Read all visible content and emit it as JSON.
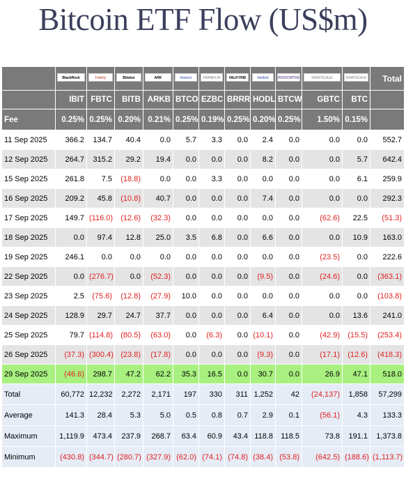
{
  "title": "Bitcoin ETF Flow (US$m)",
  "header": {
    "total_label": "Total",
    "fee_label": "Fee",
    "logos": [
      {
        "icon": "blackrock-logo",
        "text": "BlackRock",
        "style": "dark"
      },
      {
        "icon": "fidelity-logo",
        "text": "Fidelity",
        "style": "red"
      },
      {
        "icon": "bitwise-logo",
        "text": "Bitwise",
        "style": "dark"
      },
      {
        "icon": "ark-logo",
        "text": "ARK",
        "style": "dark"
      },
      {
        "icon": "invesco-logo",
        "text": "Invesco",
        "style": "blue"
      },
      {
        "icon": "franklin-logo",
        "text": "FRANKLIN",
        "style": "gray"
      },
      {
        "icon": "valkyrie-logo",
        "text": "VALKYRIE",
        "style": "dark"
      },
      {
        "icon": "vaneck-logo",
        "text": "VanEck",
        "style": "blue"
      },
      {
        "icon": "wisdomtree-logo",
        "text": "WISDOMTREE",
        "style": "purple"
      },
      {
        "icon": "grayscale-logo",
        "text": "GRAYSCALE",
        "style": "gray"
      },
      {
        "icon": "grayscale-logo-2",
        "text": "GRAYSCALE",
        "style": "gray"
      }
    ],
    "tickers": [
      "IBIT",
      "FBTC",
      "BITB",
      "ARKB",
      "BTCO",
      "EZBC",
      "BRRR",
      "HODL",
      "BTCW",
      "GBTC",
      "BTC"
    ],
    "fees": [
      "0.25%",
      "0.25%",
      "0.20%",
      "0.21%",
      "0.25%",
      "0.19%",
      "0.25%",
      "0.20%",
      "0.25%",
      "1.50%",
      "0.15%"
    ]
  },
  "rows": [
    {
      "date": "11 Sep 2025",
      "values": [
        "366.2",
        "134.7",
        "40.4",
        "0.0",
        "5.7",
        "3.3",
        "0.0",
        "2.4",
        "0.0",
        "0.0",
        "0.0"
      ],
      "total": "552.7"
    },
    {
      "date": "12 Sep 2025",
      "values": [
        "264.7",
        "315.2",
        "29.2",
        "19.4",
        "0.0",
        "0.0",
        "0.0",
        "8.2",
        "0.0",
        "0.0",
        "5.7"
      ],
      "total": "642.4"
    },
    {
      "date": "15 Sep 2025",
      "values": [
        "261.8",
        "7.5",
        "(18.8)",
        "0.0",
        "0.0",
        "3.3",
        "0.0",
        "0.0",
        "0.0",
        "0.0",
        "6.1"
      ],
      "total": "259.9"
    },
    {
      "date": "16 Sep 2025",
      "values": [
        "209.2",
        "45.8",
        "(10.8)",
        "40.7",
        "0.0",
        "0.0",
        "0.0",
        "7.4",
        "0.0",
        "0.0",
        "0.0"
      ],
      "total": "292.3"
    },
    {
      "date": "17 Sep 2025",
      "values": [
        "149.7",
        "(116.0)",
        "(12.6)",
        "(32.3)",
        "0.0",
        "0.0",
        "0.0",
        "0.0",
        "0.0",
        "(62.6)",
        "22.5"
      ],
      "total": "(51.3)"
    },
    {
      "date": "18 Sep 2025",
      "values": [
        "0.0",
        "97.4",
        "12.8",
        "25.0",
        "3.5",
        "6.8",
        "0.0",
        "6.6",
        "0.0",
        "0.0",
        "10.9"
      ],
      "total": "163.0"
    },
    {
      "date": "19 Sep 2025",
      "values": [
        "246.1",
        "0.0",
        "0.0",
        "0.0",
        "0.0",
        "0.0",
        "0.0",
        "0.0",
        "0.0",
        "(23.5)",
        "0.0"
      ],
      "total": "222.6"
    },
    {
      "date": "22 Sep 2025",
      "values": [
        "0.0",
        "(276.7)",
        "0.0",
        "(52.3)",
        "0.0",
        "0.0",
        "0.0",
        "(9.5)",
        "0.0",
        "(24.6)",
        "0.0"
      ],
      "total": "(363.1)"
    },
    {
      "date": "23 Sep 2025",
      "values": [
        "2.5",
        "(75.6)",
        "(12.8)",
        "(27.9)",
        "10.0",
        "0.0",
        "0.0",
        "0.0",
        "0.0",
        "0.0",
        "0.0"
      ],
      "total": "(103.8)"
    },
    {
      "date": "24 Sep 2025",
      "values": [
        "128.9",
        "29.7",
        "24.7",
        "37.7",
        "0.0",
        "0.0",
        "0.0",
        "6.4",
        "0.0",
        "0.0",
        "13.6"
      ],
      "total": "241.0"
    },
    {
      "date": "25 Sep 2025",
      "values": [
        "79.7",
        "(114.8)",
        "(80.5)",
        "(63.0)",
        "0.0",
        "(6.3)",
        "0.0",
        "(10.1)",
        "0.0",
        "(42.9)",
        "(15.5)"
      ],
      "total": "(253.4)"
    },
    {
      "date": "26 Sep 2025",
      "values": [
        "(37.3)",
        "(300.4)",
        "(23.8)",
        "(17.8)",
        "0.0",
        "0.0",
        "0.0",
        "(9.3)",
        "0.0",
        "(17.1)",
        "(12.6)"
      ],
      "total": "(418.3)"
    },
    {
      "date": "29 Sep 2025",
      "values": [
        "(46.6)",
        "298.7",
        "47.2",
        "62.2",
        "35.3",
        "16.5",
        "0.0",
        "30.7",
        "0.0",
        "26.9",
        "47.1"
      ],
      "total": "518.0",
      "highlight": true
    }
  ],
  "stats": [
    {
      "label": "Total",
      "values": [
        "60,772",
        "12,232",
        "2,272",
        "2,171",
        "197",
        "330",
        "311",
        "1,252",
        "42",
        "(24,137)",
        "1,858"
      ],
      "total": "57,299"
    },
    {
      "label": "Average",
      "values": [
        "141.3",
        "28.4",
        "5.3",
        "5.0",
        "0.5",
        "0.8",
        "0.7",
        "2.9",
        "0.1",
        "(56.1)",
        "4.3"
      ],
      "total": "133.3"
    },
    {
      "label": "Maximum",
      "values": [
        "1,119.9",
        "473.4",
        "237.9",
        "268.7",
        "63.4",
        "60.9",
        "43.4",
        "118.8",
        "118.5",
        "73.8",
        "191.1"
      ],
      "total": "1,373.8"
    },
    {
      "label": "Minimum",
      "values": [
        "(430.8)",
        "(344.7)",
        "(280.7)",
        "(327.9)",
        "(62.0)",
        "(74.1)",
        "(74.8)",
        "(38.4)",
        "(53.8)",
        "(642.5)",
        "(188.6)"
      ],
      "total": "(1,113.7)"
    }
  ],
  "colors": {
    "negative": "#e02020",
    "highlight_row": "#a8f07f",
    "header_bg": "#7a7a7a",
    "stats_bg": "#e6ecf6",
    "title": "#3b3f5c"
  }
}
